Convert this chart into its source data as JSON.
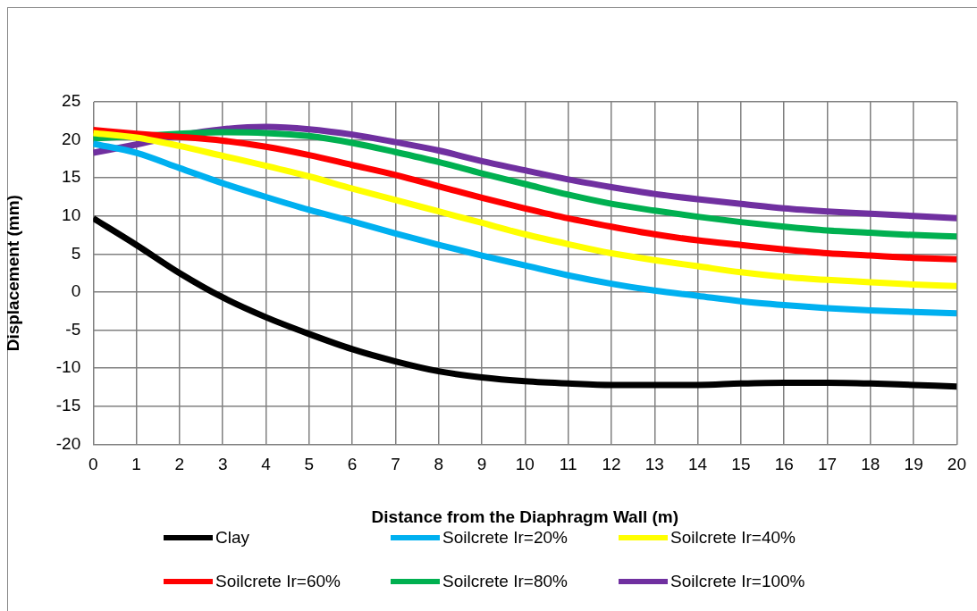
{
  "chart_data": {
    "type": "line",
    "xlabel": "Distance from the Diaphragm Wall (m)",
    "ylabel": "Displacement (mm)",
    "x": [
      0,
      1,
      2,
      3,
      4,
      5,
      6,
      7,
      8,
      9,
      10,
      11,
      12,
      13,
      14,
      15,
      16,
      17,
      18,
      19,
      20
    ],
    "xlim": [
      0,
      20
    ],
    "xticks": [
      0,
      1,
      2,
      3,
      4,
      5,
      6,
      7,
      8,
      9,
      10,
      11,
      12,
      13,
      14,
      15,
      16,
      17,
      18,
      19,
      20
    ],
    "ylim": [
      -20,
      25
    ],
    "yticks": [
      -20,
      -15,
      -10,
      -5,
      0,
      5,
      10,
      15,
      20,
      25
    ],
    "grid": true,
    "legend": "bottom",
    "marker": "none",
    "line_style": "solid",
    "series": [
      {
        "name": "Clay",
        "color": "#000000",
        "values": [
          9.7,
          6.2,
          2.5,
          -0.7,
          -3.3,
          -5.5,
          -7.5,
          -9.1,
          -10.4,
          -11.2,
          -11.7,
          -12.0,
          -12.2,
          -12.2,
          -12.2,
          -12.0,
          -11.9,
          -11.9,
          -12.0,
          -12.2,
          -12.4
        ]
      },
      {
        "name": "Soilcrete Ir=20%",
        "color": "#00b0f0",
        "values": [
          19.5,
          18.3,
          16.3,
          14.3,
          12.5,
          10.8,
          9.3,
          7.7,
          6.2,
          4.8,
          3.5,
          2.2,
          1.1,
          0.2,
          -0.5,
          -1.2,
          -1.7,
          -2.1,
          -2.4,
          -2.6,
          -2.8
        ]
      },
      {
        "name": "Soilcrete Ir=40%",
        "color": "#ffff00",
        "values": [
          20.9,
          20.3,
          19.2,
          17.9,
          16.6,
          15.2,
          13.6,
          12.1,
          10.6,
          9.1,
          7.6,
          6.3,
          5.1,
          4.2,
          3.4,
          2.6,
          2.0,
          1.6,
          1.3,
          1.0,
          0.8
        ]
      },
      {
        "name": "Soilcrete Ir=60%",
        "color": "#ff0000",
        "values": [
          21.3,
          20.8,
          20.4,
          19.9,
          19.1,
          18.0,
          16.7,
          15.4,
          13.9,
          12.4,
          11.0,
          9.7,
          8.6,
          7.6,
          6.8,
          6.2,
          5.6,
          5.1,
          4.8,
          4.5,
          4.3
        ]
      },
      {
        "name": "Soilcrete Ir=80%",
        "color": "#00b050",
        "values": [
          20.2,
          20.5,
          20.8,
          21.0,
          20.9,
          20.5,
          19.6,
          18.4,
          17.1,
          15.6,
          14.2,
          12.8,
          11.6,
          10.7,
          9.9,
          9.2,
          8.6,
          8.1,
          7.8,
          7.5,
          7.3
        ]
      },
      {
        "name": "Soilcrete Ir=100%",
        "color": "#7030a0",
        "values": [
          18.3,
          19.4,
          20.6,
          21.4,
          21.7,
          21.4,
          20.7,
          19.7,
          18.6,
          17.2,
          16.0,
          14.8,
          13.8,
          12.9,
          12.2,
          11.6,
          11.0,
          10.6,
          10.3,
          10.0,
          9.7
        ]
      }
    ]
  }
}
